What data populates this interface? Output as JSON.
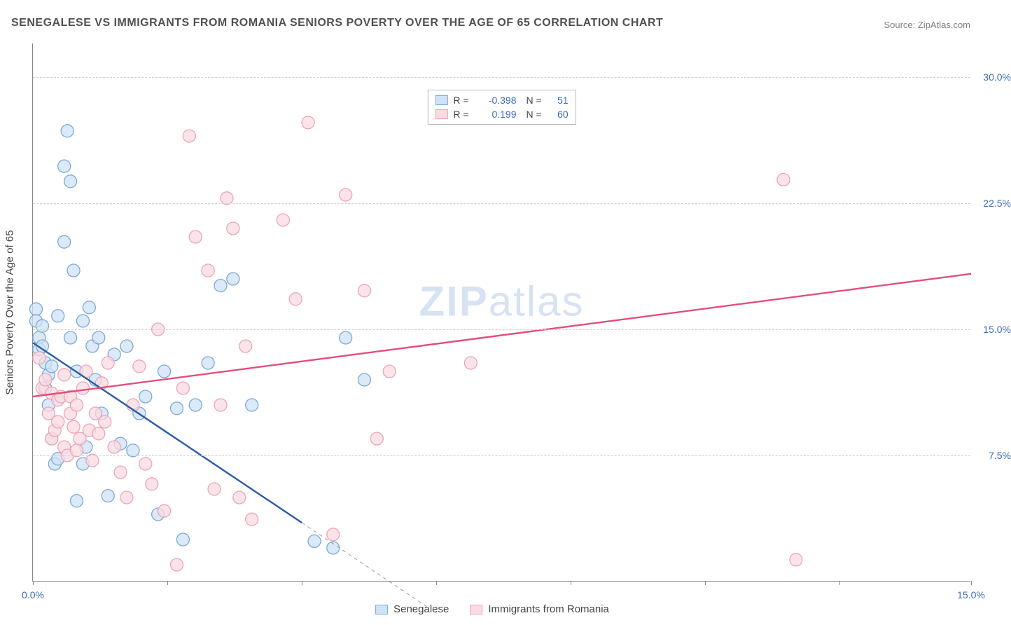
{
  "title": "SENEGALESE VS IMMIGRANTS FROM ROMANIA SENIORS POVERTY OVER THE AGE OF 65 CORRELATION CHART",
  "source": "Source: ZipAtlas.com",
  "ylabel": "Seniors Poverty Over the Age of 65",
  "watermark_a": "ZIP",
  "watermark_b": "atlas",
  "chart": {
    "type": "scatter-with-regression",
    "xlim": [
      0,
      15
    ],
    "ylim": [
      0,
      32
    ],
    "xtick_positions": [
      0,
      2.15,
      4.3,
      6.45,
      8.6,
      10.75,
      12.9,
      15
    ],
    "xtick_labels": {
      "0": "0.0%",
      "15": "15.0%"
    },
    "ytick_positions": [
      7.5,
      15.0,
      22.5,
      30.0
    ],
    "ytick_labels": [
      "7.5%",
      "15.0%",
      "22.5%",
      "30.0%"
    ],
    "grid_color": "#d0d0d0",
    "background_color": "#ffffff",
    "axis_color": "#888888"
  },
  "series": [
    {
      "name": "Senegalese",
      "r": "-0.398",
      "n": "51",
      "color_fill": "#cfe2f6",
      "color_stroke": "#7ca9d6",
      "line_color": "#2a5ca8",
      "marker_radius": 9,
      "regression": {
        "x1": 0,
        "y1": 14.2,
        "x2": 4.3,
        "y2": 3.5,
        "dash_x2": 6.3,
        "dash_y2": -1.5
      },
      "points": [
        [
          0.05,
          16.2
        ],
        [
          0.05,
          15.5
        ],
        [
          0.1,
          14.5
        ],
        [
          0.1,
          13.8
        ],
        [
          0.15,
          14.0
        ],
        [
          0.15,
          15.2
        ],
        [
          0.2,
          13.0
        ],
        [
          0.2,
          11.5
        ],
        [
          0.25,
          12.3
        ],
        [
          0.25,
          10.5
        ],
        [
          0.3,
          12.8
        ],
        [
          0.3,
          8.5
        ],
        [
          0.35,
          7.0
        ],
        [
          0.4,
          7.3
        ],
        [
          0.4,
          15.8
        ],
        [
          0.5,
          20.2
        ],
        [
          0.5,
          24.7
        ],
        [
          0.55,
          26.8
        ],
        [
          0.6,
          14.5
        ],
        [
          0.6,
          23.8
        ],
        [
          0.65,
          18.5
        ],
        [
          0.7,
          12.5
        ],
        [
          0.7,
          4.8
        ],
        [
          0.8,
          15.5
        ],
        [
          0.8,
          7.0
        ],
        [
          0.85,
          8.0
        ],
        [
          0.9,
          16.3
        ],
        [
          0.95,
          14.0
        ],
        [
          1.0,
          12.0
        ],
        [
          1.05,
          14.5
        ],
        [
          1.1,
          10.0
        ],
        [
          1.2,
          5.1
        ],
        [
          1.3,
          13.5
        ],
        [
          1.4,
          8.2
        ],
        [
          1.5,
          14.0
        ],
        [
          1.6,
          7.8
        ],
        [
          1.7,
          10.0
        ],
        [
          1.8,
          11.0
        ],
        [
          2.0,
          4.0
        ],
        [
          2.1,
          12.5
        ],
        [
          2.3,
          10.3
        ],
        [
          2.4,
          2.5
        ],
        [
          2.6,
          10.5
        ],
        [
          2.8,
          13.0
        ],
        [
          3.0,
          17.6
        ],
        [
          3.2,
          18.0
        ],
        [
          3.5,
          10.5
        ],
        [
          4.5,
          2.4
        ],
        [
          4.8,
          2.0
        ],
        [
          5.0,
          14.5
        ],
        [
          5.3,
          12.0
        ]
      ]
    },
    {
      "name": "Immigrants from Romania",
      "r": "0.199",
      "n": "60",
      "color_fill": "#fadbe2",
      "color_stroke": "#eda4b6",
      "line_color": "#e54d7a",
      "marker_radius": 9,
      "regression": {
        "x1": 0,
        "y1": 11.0,
        "x2": 15,
        "y2": 18.3
      },
      "points": [
        [
          0.1,
          13.3
        ],
        [
          0.15,
          11.5
        ],
        [
          0.2,
          12.0
        ],
        [
          0.25,
          10.0
        ],
        [
          0.3,
          11.2
        ],
        [
          0.3,
          8.5
        ],
        [
          0.35,
          9.0
        ],
        [
          0.4,
          9.5
        ],
        [
          0.4,
          10.8
        ],
        [
          0.45,
          11.0
        ],
        [
          0.5,
          12.3
        ],
        [
          0.5,
          8.0
        ],
        [
          0.55,
          7.5
        ],
        [
          0.6,
          10.0
        ],
        [
          0.6,
          11.0
        ],
        [
          0.65,
          9.2
        ],
        [
          0.7,
          10.5
        ],
        [
          0.7,
          7.8
        ],
        [
          0.75,
          8.5
        ],
        [
          0.8,
          11.5
        ],
        [
          0.85,
          12.5
        ],
        [
          0.9,
          9.0
        ],
        [
          0.95,
          7.2
        ],
        [
          1.0,
          10.0
        ],
        [
          1.05,
          8.8
        ],
        [
          1.1,
          11.8
        ],
        [
          1.15,
          9.5
        ],
        [
          1.2,
          13.0
        ],
        [
          1.3,
          8.0
        ],
        [
          1.4,
          6.5
        ],
        [
          1.5,
          5.0
        ],
        [
          1.6,
          10.5
        ],
        [
          1.7,
          12.8
        ],
        [
          1.8,
          7.0
        ],
        [
          1.9,
          5.8
        ],
        [
          2.0,
          15.0
        ],
        [
          2.1,
          4.2
        ],
        [
          2.3,
          1.0
        ],
        [
          2.4,
          11.5
        ],
        [
          2.5,
          26.5
        ],
        [
          2.6,
          20.5
        ],
        [
          2.8,
          18.5
        ],
        [
          2.9,
          5.5
        ],
        [
          3.0,
          10.5
        ],
        [
          3.1,
          22.8
        ],
        [
          3.2,
          21.0
        ],
        [
          3.3,
          5.0
        ],
        [
          3.4,
          14.0
        ],
        [
          3.5,
          3.7
        ],
        [
          4.0,
          21.5
        ],
        [
          4.2,
          16.8
        ],
        [
          4.4,
          27.3
        ],
        [
          4.8,
          2.8
        ],
        [
          5.0,
          23.0
        ],
        [
          5.3,
          17.3
        ],
        [
          5.5,
          8.5
        ],
        [
          5.7,
          12.5
        ],
        [
          12.0,
          23.9
        ],
        [
          12.2,
          1.3
        ],
        [
          7.0,
          13.0
        ]
      ]
    }
  ],
  "legend_bottom": [
    {
      "label": "Senegalese",
      "swatch_fill": "#cfe2f6",
      "swatch_stroke": "#7ca9d6"
    },
    {
      "label": "Immigrants from Romania",
      "swatch_fill": "#fadbe2",
      "swatch_stroke": "#eda4b6"
    }
  ]
}
